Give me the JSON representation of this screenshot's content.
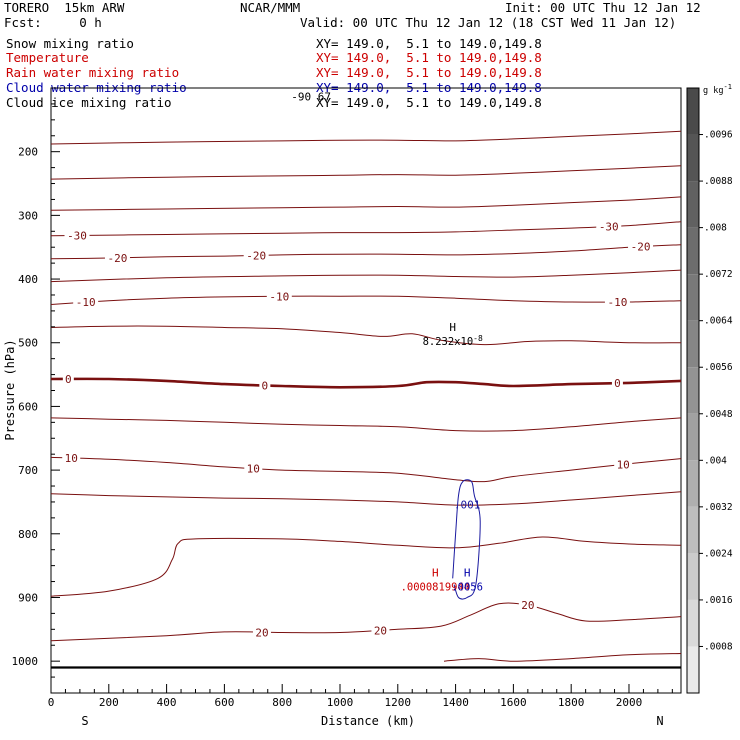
{
  "header": {
    "model": "TORERO  15km ARW",
    "org": "NCAR/MMM",
    "init": "Init: 00 UTC Thu 12 Jan 12",
    "fcst": "Fcst:     0 h",
    "valid": "Valid: 00 UTC Thu 12 Jan 12 (18 CST Wed 11 Jan 12)"
  },
  "fields": [
    {
      "name": "Snow mixing ratio",
      "range": "XY= 149.0,  5.1 to 149.0,149.8",
      "color": "#000000"
    },
    {
      "name": "Temperature",
      "range": "XY= 149.0,  5.1 to 149.0,149.8",
      "color": "#cc0000"
    },
    {
      "name": "Rain water mixing ratio",
      "range": "XY= 149.0,  5.1 to 149.0,149.8",
      "color": "#cc0000"
    },
    {
      "name": "Cloud water mixing ratio",
      "range": "XY= 149.0,  5.1 to 149.0,149.8",
      "color": "#0000aa"
    },
    {
      "name": "Cloud ice mixing ratio",
      "range": "XY= 149.0,  5.1 to 149.0,149.8",
      "color": "#000000"
    }
  ],
  "colorbar": {
    "unit": "g kg",
    "unit_exp": "-1",
    "labels": [
      ".0096",
      ".0088",
      ".008",
      ".0072",
      ".0064",
      ".0056",
      ".0048",
      ".004",
      ".0032",
      ".0024",
      ".0016",
      ".0008"
    ],
    "colors": [
      "#4a4a4a",
      "#555555",
      "#616161",
      "#6d6d6d",
      "#797979",
      "#868686",
      "#939393",
      "#a1a1a1",
      "#afafaf",
      "#bdbdbd",
      "#cbcbcb",
      "#dadada",
      "#eaeaea"
    ]
  },
  "chart_data": {
    "type": "line",
    "title": "",
    "xlabel": "Distance (km)",
    "ylabel": "Pressure (hPa)",
    "xlim": [
      0,
      2180
    ],
    "ylim": [
      1050,
      100
    ],
    "x_ticks": [
      0,
      200,
      400,
      600,
      800,
      1000,
      1200,
      1400,
      1600,
      1800,
      2000
    ],
    "y_ticks": [
      200,
      300,
      400,
      500,
      600,
      700,
      800,
      900,
      1000
    ],
    "x_end_labels": {
      "left": "S",
      "right": "N"
    },
    "temperature_contours": [
      {
        "level": -30,
        "label_positions_km": [
          90,
          1930
        ],
        "points": [
          [
            0,
            332
          ],
          [
            400,
            330
          ],
          [
            800,
            328
          ],
          [
            1000,
            327
          ],
          [
            1200,
            327
          ],
          [
            1400,
            326
          ],
          [
            1600,
            323
          ],
          [
            1800,
            320
          ],
          [
            2000,
            316
          ],
          [
            2180,
            310
          ]
        ]
      },
      {
        "level": -20,
        "label_positions_km": [
          230,
          710,
          2040
        ],
        "points": [
          [
            0,
            368
          ],
          [
            200,
            367
          ],
          [
            400,
            365
          ],
          [
            600,
            364
          ],
          [
            800,
            362
          ],
          [
            1000,
            361
          ],
          [
            1200,
            361
          ],
          [
            1400,
            362
          ],
          [
            1600,
            360
          ],
          [
            1800,
            356
          ],
          [
            2000,
            350
          ],
          [
            2180,
            346
          ]
        ]
      },
      {
        "level": -10,
        "label_positions_km": [
          120,
          790,
          1960
        ],
        "points": [
          [
            0,
            440
          ],
          [
            200,
            434
          ],
          [
            400,
            430
          ],
          [
            600,
            428
          ],
          [
            800,
            427
          ],
          [
            1000,
            427
          ],
          [
            1200,
            427
          ],
          [
            1400,
            430
          ],
          [
            1600,
            434
          ],
          [
            1800,
            436
          ],
          [
            2000,
            436
          ],
          [
            2180,
            434
          ]
        ]
      },
      {
        "level": 0,
        "label_positions_km": [
          60,
          740,
          1960
        ],
        "points": [
          [
            0,
            557
          ],
          [
            200,
            557
          ],
          [
            400,
            560
          ],
          [
            600,
            565
          ],
          [
            800,
            568
          ],
          [
            1000,
            570
          ],
          [
            1200,
            568
          ],
          [
            1300,
            562
          ],
          [
            1400,
            562
          ],
          [
            1500,
            565
          ],
          [
            1600,
            568
          ],
          [
            1800,
            565
          ],
          [
            2000,
            563
          ],
          [
            2180,
            560
          ]
        ]
      },
      {
        "level": 10,
        "label_positions_km": [
          70,
          700,
          1980
        ],
        "points": [
          [
            0,
            680
          ],
          [
            200,
            683
          ],
          [
            400,
            688
          ],
          [
            600,
            695
          ],
          [
            800,
            700
          ],
          [
            1000,
            702
          ],
          [
            1200,
            705
          ],
          [
            1400,
            715
          ],
          [
            1500,
            718
          ],
          [
            1600,
            710
          ],
          [
            1800,
            700
          ],
          [
            2000,
            690
          ],
          [
            2180,
            682
          ]
        ]
      },
      {
        "level": 20,
        "label_positions_km": [
          730,
          1140,
          1650
        ],
        "points": [
          [
            0,
            968
          ],
          [
            400,
            960
          ],
          [
            600,
            954
          ],
          [
            800,
            955
          ],
          [
            1000,
            955
          ],
          [
            1200,
            950
          ],
          [
            1350,
            945
          ],
          [
            1450,
            928
          ],
          [
            1550,
            910
          ],
          [
            1650,
            912
          ],
          [
            1750,
            925
          ],
          [
            1850,
            937
          ],
          [
            2000,
            935
          ],
          [
            2180,
            930
          ]
        ]
      }
    ],
    "minor_contours": [
      {
        "points": [
          [
            0,
            188
          ],
          [
            400,
            185
          ],
          [
            800,
            183
          ],
          [
            1000,
            182
          ],
          [
            1200,
            182
          ],
          [
            1400,
            183
          ],
          [
            1600,
            180
          ],
          [
            1800,
            176
          ],
          [
            2000,
            172
          ],
          [
            2180,
            168
          ]
        ]
      },
      {
        "points": [
          [
            0,
            243
          ],
          [
            400,
            240
          ],
          [
            800,
            238
          ],
          [
            1000,
            237
          ],
          [
            1200,
            236
          ],
          [
            1400,
            237
          ],
          [
            1600,
            234
          ],
          [
            1800,
            230
          ],
          [
            2000,
            226
          ],
          [
            2180,
            222
          ]
        ]
      },
      {
        "points": [
          [
            0,
            292
          ],
          [
            400,
            290
          ],
          [
            800,
            288
          ],
          [
            1000,
            287
          ],
          [
            1200,
            286
          ],
          [
            1400,
            287
          ],
          [
            1600,
            284
          ],
          [
            1800,
            280
          ],
          [
            2000,
            276
          ],
          [
            2180,
            271
          ]
        ]
      },
      {
        "points": [
          [
            0,
            404
          ],
          [
            400,
            398
          ],
          [
            800,
            395
          ],
          [
            1000,
            394
          ],
          [
            1200,
            394
          ],
          [
            1400,
            396
          ],
          [
            1600,
            397
          ],
          [
            1800,
            394
          ],
          [
            2000,
            390
          ],
          [
            2180,
            386
          ]
        ]
      },
      {
        "points": [
          [
            0,
            476
          ],
          [
            200,
            474
          ],
          [
            400,
            474
          ],
          [
            600,
            476
          ],
          [
            800,
            478
          ],
          [
            1000,
            484
          ],
          [
            1150,
            490
          ],
          [
            1250,
            486
          ],
          [
            1350,
            496
          ],
          [
            1500,
            503
          ],
          [
            1650,
            498
          ],
          [
            1800,
            497
          ],
          [
            2000,
            500
          ],
          [
            2180,
            500
          ]
        ]
      },
      {
        "points": [
          [
            0,
            618
          ],
          [
            200,
            620
          ],
          [
            400,
            622
          ],
          [
            600,
            625
          ],
          [
            800,
            628
          ],
          [
            1000,
            630
          ],
          [
            1200,
            632
          ],
          [
            1400,
            638
          ],
          [
            1600,
            638
          ],
          [
            1800,
            632
          ],
          [
            2000,
            624
          ],
          [
            2180,
            618
          ]
        ]
      },
      {
        "points": [
          [
            0,
            737
          ],
          [
            200,
            740
          ],
          [
            400,
            742
          ],
          [
            600,
            744
          ],
          [
            800,
            745
          ],
          [
            1000,
            747
          ],
          [
            1200,
            750
          ],
          [
            1400,
            755
          ],
          [
            1600,
            753
          ],
          [
            1800,
            747
          ],
          [
            2000,
            740
          ],
          [
            2180,
            734
          ]
        ]
      },
      {
        "points": [
          [
            0,
            898
          ],
          [
            200,
            890
          ],
          [
            370,
            870
          ],
          [
            420,
            840
          ],
          [
            440,
            815
          ],
          [
            500,
            808
          ],
          [
            800,
            808
          ],
          [
            1000,
            812
          ],
          [
            1200,
            818
          ],
          [
            1400,
            822
          ],
          [
            1550,
            815
          ],
          [
            1700,
            805
          ],
          [
            1850,
            812
          ],
          [
            2000,
            816
          ],
          [
            2180,
            818
          ]
        ]
      },
      {
        "points": [
          [
            1360,
            1000
          ],
          [
            1480,
            996
          ],
          [
            1600,
            1000
          ],
          [
            1800,
            996
          ],
          [
            2000,
            990
          ],
          [
            2180,
            988
          ]
        ]
      }
    ],
    "surface_line_hPa": 1010,
    "cloud_water_contour": {
      "level": 0.001,
      "label": ".001",
      "points": [
        [
          1390,
          870
        ],
        [
          1400,
          800
        ],
        [
          1410,
          740
        ],
        [
          1425,
          718
        ],
        [
          1455,
          718
        ],
        [
          1465,
          740
        ],
        [
          1485,
          780
        ],
        [
          1470,
          880
        ],
        [
          1440,
          900
        ],
        [
          1410,
          900
        ],
        [
          1395,
          880
        ]
      ]
    },
    "annotations": [
      {
        "text": "H",
        "sub": "8.232x10",
        "exp": "-8",
        "km": 1390,
        "hPa": 485,
        "color": "#000000"
      },
      {
        "text": "H",
        "sub": ".0000819944",
        "km": 1330,
        "hPa": 870,
        "color": "#cc0000"
      },
      {
        "text": "H",
        "sub": ".0056",
        "km": 1440,
        "hPa": 870,
        "color": "#0000aa"
      },
      {
        "text": "-90 67",
        "km": 900,
        "hPa": 113,
        "color": "#000000"
      }
    ]
  }
}
